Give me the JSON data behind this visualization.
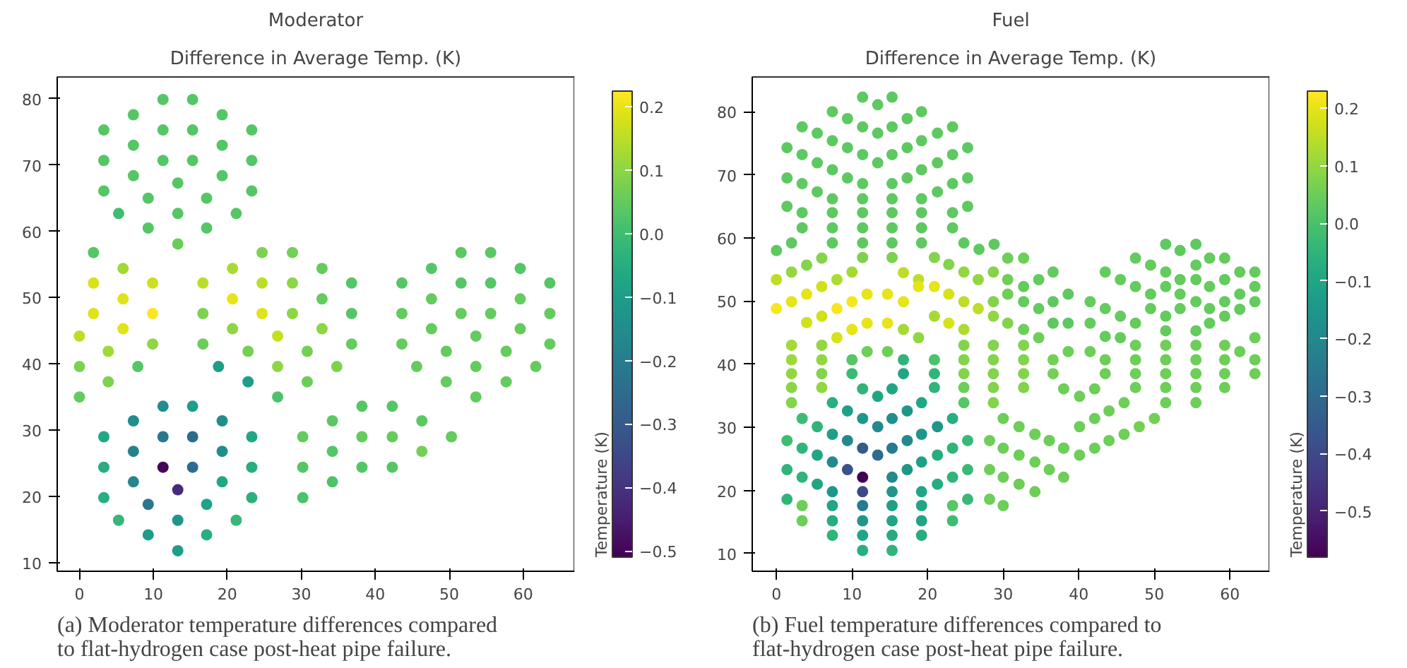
{
  "chart_data": [
    {
      "type": "scatter",
      "title": "Moderator",
      "subtitle": "Difference in Average Temp. (K)",
      "clabel": "Temperature (K)",
      "marker": "circle",
      "grid": false,
      "xlim": [
        -3.0,
        66.9
      ],
      "ylim": [
        8.7,
        83.3
      ],
      "xticks": [
        0,
        10,
        20,
        30,
        40,
        50,
        60
      ],
      "yticks": [
        10,
        20,
        30,
        40,
        50,
        60,
        70,
        80
      ],
      "clim": [
        -0.51,
        0.225
      ],
      "cticks": [
        -0.5,
        -0.4,
        -0.3,
        -0.2,
        -0.1,
        {
          "value": 0,
          "label": "0.0"
        },
        0.1,
        0.2
      ],
      "annotations": [
        "(a) Moderator temperature differences compared to flat-hydrogen case post-heat pipe failure."
      ],
      "series": [
        {
          "x": [
            11.3,
            15.3,
            7.3,
            19.3,
            3.3,
            11.3,
            15.3,
            23.3,
            7.3,
            19.3,
            3.3,
            11.3,
            15.3,
            23.3,
            7.3,
            19.3,
            13.3,
            3.3,
            23.3,
            9.3,
            17.2,
            5.3,
            13.3,
            21.2,
            9.3,
            17.2,
            13.3,
            1.9,
            5.9,
            1.9,
            9.9,
            5.9,
            1.9,
            9.9,
            5.9,
            0,
            9.9,
            3.9,
            0,
            7.9,
            3.9,
            0,
            24.7,
            28.8,
            20.7,
            32.8,
            16.7,
            24.7,
            28.8,
            36.8,
            20.7,
            32.8,
            16.7,
            24.7,
            28.8,
            36.8,
            20.7,
            32.8,
            26.8,
            16.7,
            36.8,
            22.8,
            30.8,
            18.8,
            26.8,
            34.8,
            22.8,
            30.8,
            26.8,
            51.6,
            55.6,
            47.6,
            59.6,
            43.6,
            51.6,
            55.6,
            63.6,
            47.6,
            59.6,
            43.6,
            51.6,
            55.6,
            63.6,
            47.6,
            59.6,
            53.6,
            43.6,
            63.6,
            49.6,
            57.7,
            45.6,
            53.6,
            61.7,
            49.6,
            57.7,
            53.6,
            38.2,
            42.3,
            34.2,
            46.3,
            30.2,
            38.2,
            42.3,
            50.3,
            34.2,
            46.3,
            30.2,
            38.2,
            42.3,
            34.2,
            30.2,
            11.3,
            15.3,
            7.3,
            19.3,
            3.3,
            11.3,
            15.3,
            23.3,
            7.3,
            19.3,
            3.3,
            11.3,
            15.3,
            23.3,
            7.3,
            19.3,
            13.3,
            3.3,
            23.3,
            9.3,
            17.2,
            5.3,
            13.3,
            21.2,
            9.3,
            17.2,
            13.3
          ],
          "values": [
            79.9,
            79.9,
            77.6,
            77.6,
            75.3,
            75.3,
            75.3,
            75.3,
            73.0,
            73.0,
            70.7,
            70.7,
            70.7,
            70.7,
            68.4,
            68.4,
            67.3,
            66.1,
            66.1,
            65.0,
            65.0,
            62.7,
            62.7,
            62.7,
            60.5,
            60.5,
            58.1,
            56.8,
            54.4,
            52.2,
            52.2,
            49.8,
            47.6,
            47.6,
            45.3,
            44.2,
            43.0,
            41.9,
            39.6,
            39.6,
            37.3,
            35.0,
            56.8,
            56.8,
            54.4,
            54.4,
            52.2,
            52.2,
            52.2,
            52.2,
            49.8,
            49.8,
            47.6,
            47.6,
            47.6,
            47.6,
            45.3,
            45.3,
            44.2,
            43.0,
            43.0,
            41.9,
            41.9,
            39.6,
            39.6,
            39.6,
            37.3,
            37.3,
            35.0,
            56.8,
            56.8,
            54.4,
            54.4,
            52.2,
            52.2,
            52.2,
            52.2,
            49.8,
            49.8,
            47.6,
            47.6,
            47.6,
            47.6,
            45.3,
            45.3,
            44.2,
            43.0,
            43.0,
            41.9,
            41.9,
            39.6,
            39.6,
            39.6,
            37.3,
            37.3,
            35.0,
            33.6,
            33.6,
            31.4,
            31.4,
            29.0,
            29.0,
            29.0,
            29.0,
            26.8,
            26.8,
            24.4,
            24.4,
            24.4,
            22.2,
            19.8,
            33.6,
            33.6,
            31.4,
            31.4,
            29.0,
            29.0,
            29.0,
            29.0,
            26.8,
            26.8,
            24.4,
            24.4,
            24.4,
            24.4,
            22.2,
            22.2,
            21.0,
            19.8,
            19.8,
            18.8,
            18.8,
            16.4,
            16.4,
            16.4,
            14.2,
            14.2,
            11.8
          ],
          "cvalues": [
            0.03,
            0.03,
            0.03,
            0.03,
            0.03,
            0.03,
            0.03,
            0.03,
            0.03,
            0.03,
            0.03,
            0.03,
            0.03,
            0.03,
            0.03,
            0.03,
            0.03,
            0.03,
            0.03,
            0.03,
            0.03,
            0.0,
            0.03,
            0.03,
            0.03,
            0.03,
            0.06,
            0.03,
            0.12,
            0.18,
            0.17,
            0.19,
            0.19,
            0.22,
            0.19,
            0.15,
            0.1,
            0.12,
            0.08,
            0.03,
            0.08,
            0.05,
            0.08,
            0.07,
            0.13,
            0.05,
            0.15,
            0.15,
            0.1,
            0.03,
            0.2,
            0.05,
            0.08,
            0.19,
            0.1,
            0.03,
            0.1,
            0.1,
            0.16,
            0.06,
            0.05,
            0.07,
            0.07,
            -0.1,
            0.1,
            0.08,
            -0.1,
            0.06,
            0.02,
            0.04,
            0.04,
            0.03,
            0.03,
            0.03,
            0.03,
            0.03,
            0.03,
            0.05,
            0.05,
            0.05,
            0.05,
            0.05,
            0.05,
            0.05,
            0.05,
            0.05,
            0.05,
            0.05,
            0.05,
            0.05,
            0.05,
            0.05,
            0.05,
            0.05,
            0.05,
            0.05,
            0.03,
            0.03,
            0.04,
            0.04,
            0.05,
            0.05,
            0.05,
            0.05,
            0.03,
            0.07,
            0.03,
            0.03,
            0.03,
            0.02,
            0.02,
            -0.15,
            -0.1,
            -0.15,
            -0.15,
            -0.07,
            -0.22,
            -0.25,
            -0.07,
            -0.18,
            -0.15,
            -0.05,
            -0.5,
            -0.25,
            -0.05,
            -0.17,
            -0.07,
            -0.42,
            -0.05,
            -0.04,
            -0.22,
            -0.08,
            -0.02,
            -0.12,
            -0.02,
            -0.1,
            -0.05,
            -0.1
          ]
        }
      ]
    },
    {
      "type": "scatter",
      "title": "Fuel",
      "subtitle": "Difference in Average Temp. (K)",
      "clabel": "Temperature (K)",
      "marker": "circle",
      "grid": false,
      "xlim": [
        -3.2,
        65.2
      ],
      "ylim": [
        7.2,
        85.5
      ],
      "xticks": [
        0,
        10,
        20,
        30,
        40,
        50,
        60
      ],
      "yticks": [
        10,
        20,
        30,
        40,
        50,
        60,
        70,
        80
      ],
      "clim": [
        -0.58,
        0.23
      ],
      "cticks": [
        -0.5,
        -0.4,
        -0.3,
        -0.2,
        -0.1,
        {
          "value": 0,
          "label": "0.0"
        },
        0.1,
        0.2
      ],
      "annotations": [
        "(b) Fuel temperature differences compared to flat-hydrogen case post-heat pipe failure."
      ],
      "series": [
        {
          "x": [
            11.4,
            15.3,
            13.4,
            7.4,
            19.2,
            9.4,
            17.3,
            3.4,
            11.4,
            15.3,
            23.3,
            5.4,
            13.4,
            21.3,
            7.4,
            19.2,
            1.4,
            9.4,
            17.3,
            25.3,
            3.4,
            11.4,
            15.3,
            23.3,
            5.4,
            13.4,
            21.3,
            7.4,
            19.2,
            1.4,
            9.4,
            17.3,
            25.3,
            3.4,
            11.4,
            15.3,
            23.3,
            5.4,
            21.3,
            7.4,
            11.4,
            15.3,
            19.2,
            1.4,
            25.3,
            3.4,
            7.4,
            11.4,
            15.3,
            19.2,
            23.3,
            3.4,
            7.4,
            11.4,
            15.3,
            19.2,
            23.3,
            7.4,
            11.4,
            15.3,
            19.2,
            24.8,
            26.8,
            28.8,
            0,
            2.0,
            6.0,
            4.0,
            11.4,
            15.3,
            20.9,
            22.8,
            24.8,
            26.7,
            0,
            2.0,
            8.0,
            10.0,
            16.8,
            18.8,
            0,
            2.0,
            4.0,
            6.0,
            8.0,
            10.0,
            12.0,
            14.7,
            16.8,
            18.8,
            20.9,
            22.8,
            24.8,
            26.7,
            4.0,
            6.0,
            8.0,
            10.0,
            12.0,
            14.7,
            16.8,
            18.8,
            20.9,
            22.8,
            24.8,
            2.0,
            2.0,
            2.0,
            2.0,
            2.0,
            6.0,
            6.0,
            6.0,
            6.0,
            24.8,
            24.8,
            24.8,
            24.8,
            24.8,
            20.9,
            20.9,
            20.9,
            12.0,
            14.7,
            10.0,
            16.8,
            10.0,
            16.8,
            11.4,
            13.4,
            15.3,
            7.4,
            9.4,
            11.4,
            13.4,
            15.3,
            17.3,
            19.2,
            3.4,
            5.4,
            7.4,
            9.4,
            11.4,
            13.4,
            15.3,
            17.3,
            19.2,
            21.3,
            23.3,
            1.4,
            3.4,
            5.4,
            7.4,
            9.4,
            11.4,
            15.3,
            17.3,
            19.2,
            21.3,
            23.3,
            25.3,
            1.4,
            3.4,
            5.4,
            7.4,
            11.4,
            15.3,
            19.2,
            21.3,
            23.3,
            25.3,
            1.4,
            3.4,
            7.4,
            11.4,
            15.3,
            19.2,
            23.3,
            25.3,
            3.4,
            7.4,
            11.4,
            15.3,
            19.2,
            23.3,
            7.4,
            11.4,
            15.3,
            19.2,
            11.4,
            15.3,
            30.6,
            32.7,
            28.7,
            30.6,
            32.7,
            34.7,
            36.6,
            28.7,
            30.6,
            32.7,
            34.7,
            36.6,
            38.6,
            28.7,
            30.6,
            32.7,
            34.7,
            36.6,
            38.6,
            28.7,
            28.7,
            28.7,
            28.7,
            28.7,
            32.7,
            32.7,
            32.7,
            32.7,
            38.6,
            41.5,
            36.6,
            43.5,
            36.6,
            43.5,
            38.0,
            40.1,
            42.1,
            34.2,
            36.1,
            38.0,
            40.1,
            42.1,
            44.0,
            46.0,
            50.0,
            48.0,
            46.0,
            44.0,
            42.1,
            40.1,
            30.0,
            32.1,
            34.2,
            36.1,
            38.0,
            28.2,
            30.0,
            32.1,
            34.2,
            36.1,
            38.0,
            28.2,
            30.0,
            32.1,
            34.2,
            28.2,
            30.0,
            51.5,
            55.5,
            53.4,
            47.5,
            49.5,
            51.5,
            53.4,
            55.5,
            57.3,
            59.3,
            43.5,
            45.5,
            47.5,
            49.5,
            51.5,
            53.4,
            55.5,
            57.3,
            59.3,
            61.3,
            63.3,
            41.5,
            43.5,
            45.5,
            47.5,
            49.5,
            51.5,
            53.4,
            55.5,
            57.3,
            59.3,
            61.3,
            63.3,
            41.5,
            43.5,
            45.5,
            51.5,
            55.5,
            57.3,
            59.3,
            61.3,
            63.3,
            47.5,
            51.5,
            55.5,
            59.3,
            63.3,
            47.5,
            51.5,
            55.5,
            59.3,
            61.3,
            47.5,
            51.5,
            55.5,
            59.3,
            63.3,
            63.3,
            47.5,
            51.5,
            55.5,
            59.3,
            51.5,
            55.5
          ],
          "values": [
            82.3,
            82.3,
            81.1,
            80.0,
            80.0,
            78.9,
            78.9,
            77.6,
            77.6,
            77.6,
            77.6,
            76.6,
            76.6,
            76.6,
            75.4,
            75.4,
            74.3,
            74.3,
            74.3,
            74.3,
            73.2,
            73.2,
            73.2,
            73.2,
            71.9,
            71.9,
            71.9,
            70.8,
            70.8,
            69.5,
            69.5,
            69.5,
            69.5,
            68.6,
            68.6,
            68.6,
            68.6,
            67.3,
            67.3,
            66.2,
            66.2,
            66.2,
            66.2,
            65.0,
            65.0,
            64.0,
            64.0,
            64.0,
            64.0,
            64.0,
            64.0,
            61.6,
            61.6,
            61.6,
            61.6,
            61.6,
            61.6,
            59.2,
            59.2,
            59.2,
            59.2,
            59.2,
            58.2,
            59.0,
            58.0,
            59.2,
            56.8,
            55.7,
            56.9,
            56.9,
            56.9,
            55.8,
            54.6,
            53.4,
            53.4,
            54.6,
            53.4,
            54.6,
            54.5,
            53.4,
            48.8,
            49.9,
            51.1,
            52.3,
            48.8,
            49.9,
            51.1,
            51.1,
            49.9,
            52.3,
            52.3,
            51.1,
            49.9,
            48.8,
            46.6,
            47.6,
            44.2,
            45.5,
            46.5,
            46.5,
            45.5,
            44.2,
            47.6,
            46.5,
            45.5,
            43.0,
            40.7,
            38.5,
            36.3,
            33.9,
            43.0,
            40.7,
            38.5,
            36.3,
            43.0,
            40.7,
            38.5,
            36.3,
            33.9,
            40.7,
            38.5,
            36.3,
            42.0,
            42.0,
            40.7,
            40.7,
            38.5,
            38.5,
            36.1,
            34.9,
            36.1,
            33.9,
            32.6,
            31.4,
            30.1,
            31.4,
            32.6,
            33.9,
            31.4,
            30.1,
            28.9,
            27.9,
            26.7,
            25.6,
            26.7,
            27.9,
            28.9,
            30.1,
            31.4,
            27.9,
            26.7,
            25.6,
            24.5,
            23.3,
            22.1,
            22.1,
            23.3,
            24.5,
            25.6,
            26.7,
            27.9,
            23.3,
            22.1,
            21.0,
            19.8,
            19.8,
            19.8,
            19.8,
            21.0,
            22.1,
            23.3,
            18.6,
            17.6,
            17.6,
            17.6,
            17.6,
            17.6,
            17.6,
            18.6,
            15.2,
            15.2,
            15.2,
            15.2,
            15.2,
            15.2,
            12.9,
            12.9,
            12.9,
            12.9,
            10.5,
            10.5,
            56.8,
            56.8,
            54.6,
            53.4,
            52.3,
            53.4,
            54.6,
            49.9,
            51.1,
            49.9,
            48.8,
            49.9,
            51.1,
            47.6,
            46.5,
            45.5,
            44.2,
            46.5,
            46.5,
            43.0,
            40.7,
            38.5,
            36.3,
            33.9,
            43.0,
            40.7,
            38.5,
            36.3,
            42.0,
            42.0,
            40.7,
            40.7,
            38.5,
            38.5,
            36.1,
            34.9,
            36.1,
            28.9,
            27.9,
            26.7,
            25.6,
            26.7,
            27.9,
            28.9,
            31.4,
            30.1,
            33.9,
            32.6,
            31.4,
            30.1,
            31.4,
            30.1,
            28.9,
            27.9,
            26.7,
            27.9,
            26.7,
            25.6,
            24.5,
            23.3,
            22.1,
            23.3,
            22.1,
            21.0,
            19.8,
            18.6,
            17.6,
            59.0,
            59.0,
            58.0,
            56.8,
            55.7,
            54.6,
            53.4,
            55.7,
            56.8,
            56.8,
            54.6,
            53.4,
            52.3,
            51.1,
            52.3,
            51.1,
            53.4,
            52.3,
            53.4,
            54.6,
            54.6,
            49.9,
            48.8,
            47.6,
            46.5,
            48.8,
            47.6,
            48.8,
            49.9,
            48.8,
            49.9,
            51.1,
            52.3,
            46.5,
            44.4,
            44.2,
            45.3,
            45.3,
            46.5,
            47.6,
            48.7,
            49.9,
            43.0,
            43.0,
            43.0,
            43.0,
            44.2,
            40.7,
            40.7,
            40.7,
            40.7,
            42.0,
            38.5,
            38.5,
            38.5,
            38.5,
            40.7,
            38.5,
            36.3,
            36.3,
            36.3,
            36.3,
            33.9,
            33.9
          ],
          "cvalues": [
            0.03,
            0.03,
            0.03,
            0.03,
            0.03,
            0.03,
            0.03,
            0.03,
            0.03,
            0.03,
            0.03,
            0.03,
            0.03,
            0.03,
            0.03,
            0.03,
            0.03,
            0.03,
            0.03,
            0.03,
            0.03,
            0.03,
            0.03,
            0.03,
            0.03,
            0.03,
            0.03,
            0.03,
            0.03,
            0.03,
            0.03,
            0.03,
            0.03,
            0.03,
            0.03,
            0.03,
            0.03,
            0.03,
            0.03,
            0.03,
            0.03,
            0.03,
            0.03,
            0.03,
            0.03,
            0.03,
            0.03,
            0.03,
            0.03,
            0.03,
            0.03,
            0.03,
            0.03,
            0.03,
            0.03,
            0.03,
            0.03,
            0.03,
            0.03,
            0.03,
            0.03,
            0.03,
            0.03,
            0.03,
            0.03,
            0.03,
            0.08,
            0.08,
            0.07,
            0.07,
            0.08,
            0.08,
            0.1,
            0.1,
            0.15,
            0.1,
            0.13,
            0.12,
            0.15,
            0.15,
            0.22,
            0.2,
            0.2,
            0.17,
            0.22,
            0.22,
            0.2,
            0.2,
            0.2,
            0.2,
            0.2,
            0.18,
            0.15,
            0.15,
            0.17,
            0.17,
            0.18,
            0.2,
            0.2,
            0.2,
            0.12,
            0.1,
            0.12,
            0.18,
            0.13,
            0.12,
            0.11,
            0.1,
            0.09,
            0.08,
            0.1,
            0.1,
            0.08,
            0.1,
            0.08,
            0.08,
            0.08,
            0.05,
            0.02,
            0.0,
            -0.05,
            -0.05,
            0.05,
            0.05,
            0.02,
            -0.05,
            -0.03,
            -0.1,
            -0.05,
            -0.1,
            -0.1,
            -0.07,
            -0.12,
            -0.15,
            -0.2,
            -0.17,
            -0.15,
            -0.1,
            -0.02,
            -0.05,
            -0.12,
            -0.2,
            -0.35,
            -0.3,
            -0.25,
            -0.2,
            -0.15,
            -0.15,
            -0.07,
            -0.02,
            -0.05,
            -0.1,
            -0.2,
            -0.38,
            -0.58,
            -0.2,
            -0.15,
            -0.12,
            -0.08,
            -0.05,
            -0.03,
            -0.05,
            -0.05,
            -0.1,
            -0.15,
            -0.4,
            -0.15,
            -0.1,
            -0.08,
            -0.05,
            -0.03,
            -0.05,
            0.05,
            -0.1,
            -0.25,
            -0.12,
            -0.1,
            0.02,
            -0.03,
            0.05,
            -0.08,
            -0.15,
            -0.1,
            -0.1,
            -0.02,
            -0.05,
            -0.1,
            -0.08,
            -0.08,
            -0.07,
            -0.05,
            0.05,
            0.05,
            0.08,
            0.05,
            0.04,
            0.04,
            0.04,
            0.08,
            0.05,
            0.04,
            0.04,
            0.03,
            0.03,
            0.1,
            0.08,
            0.05,
            0.05,
            0.03,
            0.03,
            0.08,
            0.08,
            0.08,
            0.08,
            0.08,
            0.08,
            0.08,
            0.08,
            0.08,
            0.05,
            0.05,
            0.06,
            0.05,
            0.06,
            0.05,
            0.05,
            0.05,
            0.05,
            0.05,
            0.05,
            0.05,
            0.05,
            0.05,
            0.05,
            0.05,
            0.06,
            0.06,
            0.05,
            0.05,
            0.05,
            0.05,
            0.05,
            0.05,
            0.05,
            0.05,
            0.05,
            0.05,
            0.05,
            0.05,
            0.05,
            0.05,
            0.05,
            0.05,
            0.05,
            0.05,
            0.05,
            0.05,
            0.05,
            0.03,
            0.03,
            0.03,
            0.04,
            0.04,
            0.04,
            0.04,
            0.04,
            0.04,
            0.04,
            0.04,
            0.04,
            0.04,
            0.04,
            0.04,
            0.04,
            0.04,
            0.04,
            0.04,
            0.04,
            0.04,
            0.04,
            0.04,
            0.04,
            0.04,
            0.04,
            0.04,
            0.04,
            0.04,
            0.04,
            0.04,
            0.04,
            0.04,
            0.04,
            0.04,
            0.04,
            0.04,
            0.04,
            0.04,
            0.04,
            0.04,
            0.04,
            0.05,
            0.05,
            0.05,
            0.05,
            0.05,
            0.05,
            0.05,
            0.05,
            0.05,
            0.05,
            0.05,
            0.05,
            0.05,
            0.05,
            0.05,
            0.05,
            0.05,
            0.05,
            0.05,
            0.05,
            0.05,
            0.05
          ]
        }
      ]
    }
  ]
}
